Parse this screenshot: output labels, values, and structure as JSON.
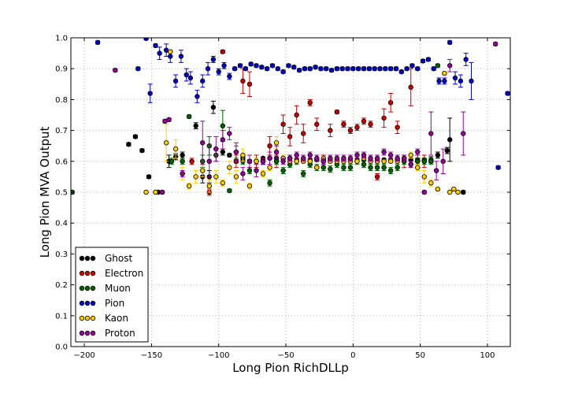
{
  "chart_data": {
    "type": "scatter",
    "xlabel": "Long Pion RichDLLp",
    "ylabel": "Long Pion MVA Output",
    "xlim": [
      -210,
      117
    ],
    "ylim": [
      0.0,
      1.0
    ],
    "xticks": [
      -200,
      -150,
      -100,
      -50,
      0,
      50,
      100
    ],
    "yticks": [
      0.0,
      0.1,
      0.2,
      0.3,
      0.4,
      0.5,
      0.6,
      0.7,
      0.8,
      0.9,
      1.0
    ],
    "xtick_labels": [
      "−200",
      "−150",
      "−100",
      "−50",
      "0",
      "50",
      "100"
    ],
    "ytick_labels": [
      "0.0",
      "0.1",
      "0.2",
      "0.3",
      "0.4",
      "0.5",
      "0.6",
      "0.7",
      "0.8",
      "0.9",
      "1.0"
    ],
    "grid": true,
    "error_bars": true,
    "legend_position": "bottom-left",
    "series": [
      {
        "name": "Ghost",
        "color": "#000000",
        "x": [
          -167,
          -162,
          -157,
          -152,
          -145,
          -137,
          -132,
          -127,
          -117,
          -112,
          -107,
          -104,
          -97,
          -92,
          -87,
          -82,
          -77,
          -72,
          -67,
          -62,
          -57,
          -52,
          -47,
          -42,
          -37,
          -32,
          -27,
          -22,
          -17,
          -12,
          -7,
          -2,
          3,
          8,
          13,
          18,
          23,
          28,
          33,
          38,
          43,
          48,
          53,
          58,
          63,
          70,
          72,
          82
        ],
        "y": [
          0.655,
          0.68,
          0.635,
          0.55,
          0.5,
          0.6,
          0.615,
          0.62,
          0.715,
          0.55,
          0.55,
          0.775,
          0.63,
          0.62,
          0.6,
          0.61,
          0.6,
          0.6,
          0.61,
          0.61,
          0.61,
          0.61,
          0.61,
          0.605,
          0.605,
          0.605,
          0.605,
          0.605,
          0.605,
          0.605,
          0.605,
          0.605,
          0.605,
          0.605,
          0.605,
          0.605,
          0.605,
          0.605,
          0.605,
          0.605,
          0.605,
          0.605,
          0.605,
          0.605,
          0.62,
          0.635,
          0.67,
          0.5
        ],
        "err": [
          0.005,
          0.005,
          0.005,
          0.005,
          0.005,
          0.02,
          0.01,
          0.01,
          0.01,
          0.02,
          0.02,
          0.02,
          0.01,
          0.005,
          0.005,
          0.005,
          0.005,
          0.003,
          0.003,
          0.003,
          0.003,
          0.003,
          0.003,
          0.003,
          0.003,
          0.003,
          0.003,
          0.003,
          0.003,
          0.003,
          0.003,
          0.003,
          0.003,
          0.003,
          0.003,
          0.003,
          0.003,
          0.003,
          0.003,
          0.003,
          0.005,
          0.005,
          0.005,
          0.01,
          0.01,
          0.01,
          0.07,
          0.005
        ]
      },
      {
        "name": "Electron",
        "color": "#cc0000",
        "x": [
          -120,
          -107,
          -97,
          -87,
          -82,
          -77,
          -72,
          -67,
          -62,
          -57,
          -52,
          -47,
          -42,
          -37,
          -32,
          -27,
          -22,
          -17,
          -12,
          -7,
          -2,
          3,
          8,
          13,
          18,
          23,
          28,
          33,
          38,
          43,
          48,
          53
        ],
        "y": [
          0.6,
          0.5,
          0.955,
          0.6,
          0.86,
          0.85,
          0.6,
          0.6,
          0.65,
          0.6,
          0.72,
          0.68,
          0.75,
          0.69,
          0.79,
          0.72,
          0.6,
          0.7,
          0.76,
          0.72,
          0.7,
          0.71,
          0.73,
          0.72,
          0.55,
          0.74,
          0.79,
          0.71,
          0.6,
          0.84,
          0.6,
          0.6
        ],
        "err": [
          0.01,
          0.01,
          0.005,
          0.02,
          0.04,
          0.04,
          0.02,
          0.01,
          0.03,
          0.02,
          0.03,
          0.03,
          0.03,
          0.03,
          0.01,
          0.02,
          0.02,
          0.02,
          0.005,
          0.01,
          0.01,
          0.01,
          0.01,
          0.01,
          0.01,
          0.03,
          0.03,
          0.02,
          0.02,
          0.06,
          0.02,
          0.02
        ]
      },
      {
        "name": "Muon",
        "color": "#006600",
        "x": [
          -209,
          -135,
          -127,
          -122,
          -112,
          -107,
          -102,
          -97,
          -92,
          -87,
          -82,
          -77,
          -72,
          -67,
          -62,
          -57,
          -52,
          -47,
          -42,
          -37,
          -32,
          -27,
          -22,
          -17,
          -12,
          -7,
          -2,
          3,
          8,
          13,
          18,
          23,
          28,
          33,
          38,
          43,
          48,
          53,
          58,
          63
        ],
        "y": [
          0.5,
          0.6,
          0.6,
          0.745,
          0.6,
          0.65,
          0.62,
          0.715,
          0.505,
          0.63,
          0.6,
          0.57,
          0.6,
          0.6,
          0.53,
          0.6,
          0.57,
          0.59,
          0.6,
          0.56,
          0.59,
          0.58,
          0.58,
          0.575,
          0.59,
          0.58,
          0.58,
          0.6,
          0.59,
          0.58,
          0.58,
          0.58,
          0.57,
          0.58,
          0.6,
          0.59,
          0.6,
          0.6,
          0.6,
          0.91
        ],
        "err": [
          0.005,
          0.01,
          0.01,
          0.005,
          0.02,
          0.03,
          0.02,
          0.05,
          0.005,
          0.02,
          0.01,
          0.01,
          0.01,
          0.01,
          0.01,
          0.01,
          0.01,
          0.01,
          0.01,
          0.01,
          0.01,
          0.01,
          0.01,
          0.01,
          0.01,
          0.01,
          0.01,
          0.01,
          0.01,
          0.01,
          0.01,
          0.01,
          0.01,
          0.01,
          0.01,
          0.01,
          0.01,
          0.01,
          0.01,
          0.005
        ]
      },
      {
        "name": "Pion",
        "color": "#0000cc",
        "x": [
          -190,
          -160,
          -154,
          -151,
          -147,
          -144,
          -139,
          -136,
          -132,
          -128,
          -124,
          -121,
          -116,
          -112,
          -108,
          -104,
          -100,
          -96,
          -92,
          -88,
          -84,
          -80,
          -76,
          -72,
          -68,
          -64,
          -60,
          -56,
          -52,
          -48,
          -44,
          -40,
          -36,
          -32,
          -28,
          -24,
          -20,
          -16,
          -12,
          -8,
          -4,
          0,
          4,
          8,
          12,
          16,
          20,
          24,
          28,
          32,
          36,
          40,
          44,
          48,
          52,
          56,
          60,
          64,
          68,
          72,
          76,
          80,
          84,
          88,
          108,
          115
        ],
        "y": [
          0.985,
          0.9,
          0.998,
          0.82,
          0.975,
          0.95,
          0.96,
          0.94,
          0.86,
          0.94,
          0.88,
          0.87,
          0.81,
          0.86,
          0.9,
          0.93,
          0.89,
          0.91,
          0.875,
          0.9,
          0.91,
          0.9,
          0.915,
          0.91,
          0.905,
          0.9,
          0.91,
          0.9,
          0.89,
          0.91,
          0.905,
          0.895,
          0.9,
          0.9,
          0.905,
          0.9,
          0.9,
          0.895,
          0.9,
          0.9,
          0.9,
          0.9,
          0.9,
          0.9,
          0.9,
          0.9,
          0.9,
          0.9,
          0.9,
          0.9,
          0.89,
          0.9,
          0.91,
          0.9,
          0.925,
          0.93,
          0.9,
          0.86,
          0.86,
          0.985,
          0.87,
          0.86,
          0.93,
          0.86,
          0.58,
          0.82
        ],
        "err": [
          0.005,
          0.005,
          0.005,
          0.03,
          0.005,
          0.02,
          0.02,
          0.02,
          0.02,
          0.02,
          0.02,
          0.02,
          0.02,
          0.02,
          0.02,
          0.01,
          0.01,
          0.01,
          0.01,
          0.005,
          0.005,
          0.005,
          0.005,
          0.005,
          0.005,
          0.005,
          0.005,
          0.005,
          0.005,
          0.005,
          0.005,
          0.005,
          0.005,
          0.005,
          0.005,
          0.005,
          0.005,
          0.005,
          0.005,
          0.005,
          0.005,
          0.005,
          0.005,
          0.005,
          0.005,
          0.005,
          0.005,
          0.005,
          0.005,
          0.005,
          0.005,
          0.005,
          0.005,
          0.005,
          0.005,
          0.005,
          0.005,
          0.01,
          0.01,
          0.005,
          0.02,
          0.02,
          0.02,
          0.06,
          0.005,
          0.005
        ]
      },
      {
        "name": "Kaon",
        "color": "#ffcc00",
        "x": [
          -154,
          -147,
          -139,
          -136,
          -132,
          -127,
          -122,
          -117,
          -112,
          -107,
          -102,
          -97,
          -92,
          -87,
          -82,
          -77,
          -72,
          -67,
          -62,
          -57,
          -52,
          -47,
          -42,
          -37,
          -32,
          -27,
          -22,
          -17,
          -12,
          -7,
          -2,
          3,
          8,
          13,
          18,
          23,
          28,
          33,
          38,
          43,
          48,
          53,
          58,
          63,
          68,
          72,
          75,
          78
        ],
        "y": [
          0.5,
          0.5,
          0.66,
          0.955,
          0.64,
          0.56,
          0.52,
          0.55,
          0.57,
          0.52,
          0.55,
          0.53,
          0.58,
          0.55,
          0.62,
          0.52,
          0.6,
          0.56,
          0.58,
          0.66,
          0.61,
          0.6,
          0.6,
          0.6,
          0.6,
          0.58,
          0.61,
          0.6,
          0.6,
          0.6,
          0.6,
          0.6,
          0.61,
          0.6,
          0.6,
          0.6,
          0.6,
          0.6,
          0.61,
          0.62,
          0.58,
          0.55,
          0.53,
          0.51,
          0.885,
          0.5,
          0.51,
          0.5
        ],
        "err": [
          0.005,
          0.005,
          0.06,
          0.005,
          0.03,
          0.02,
          0.01,
          0.02,
          0.02,
          0.02,
          0.02,
          0.01,
          0.02,
          0.02,
          0.02,
          0.01,
          0.01,
          0.01,
          0.01,
          0.02,
          0.01,
          0.005,
          0.005,
          0.005,
          0.005,
          0.005,
          0.005,
          0.005,
          0.005,
          0.005,
          0.005,
          0.005,
          0.005,
          0.005,
          0.005,
          0.005,
          0.005,
          0.005,
          0.005,
          0.01,
          0.01,
          0.02,
          0.01,
          0.005,
          0.005,
          0.005,
          0.005,
          0.005
        ]
      },
      {
        "name": "Proton",
        "color": "#990099",
        "x": [
          -177,
          -142,
          -140,
          -137,
          -127,
          -112,
          -107,
          -102,
          -97,
          -92,
          -87,
          -82,
          -77,
          -72,
          -67,
          -62,
          -57,
          -52,
          -47,
          -42,
          -37,
          -32,
          -27,
          -22,
          -17,
          -12,
          -7,
          -2,
          3,
          8,
          13,
          18,
          23,
          28,
          33,
          38,
          43,
          48,
          53,
          58,
          62,
          67,
          72,
          82,
          106
        ],
        "y": [
          0.895,
          0.5,
          0.73,
          0.735,
          0.56,
          0.66,
          0.6,
          0.64,
          0.67,
          0.69,
          0.63,
          0.56,
          0.6,
          0.57,
          0.6,
          0.61,
          0.63,
          0.6,
          0.61,
          0.62,
          0.61,
          0.62,
          0.61,
          0.6,
          0.61,
          0.61,
          0.61,
          0.61,
          0.62,
          0.62,
          0.61,
          0.61,
          0.63,
          0.62,
          0.61,
          0.61,
          0.59,
          0.63,
          0.5,
          0.69,
          0.57,
          0.6,
          0.91,
          0.69,
          0.98
        ],
        "err": [
          0.005,
          0.005,
          0.005,
          0.005,
          0.01,
          0.07,
          0.05,
          0.04,
          0.03,
          0.02,
          0.03,
          0.02,
          0.02,
          0.02,
          0.01,
          0.02,
          0.02,
          0.01,
          0.01,
          0.01,
          0.01,
          0.01,
          0.01,
          0.01,
          0.01,
          0.01,
          0.01,
          0.01,
          0.01,
          0.01,
          0.01,
          0.01,
          0.01,
          0.01,
          0.01,
          0.01,
          0.01,
          0.01,
          0.005,
          0.07,
          0.03,
          0.04,
          0.02,
          0.07,
          0.005
        ]
      }
    ]
  }
}
